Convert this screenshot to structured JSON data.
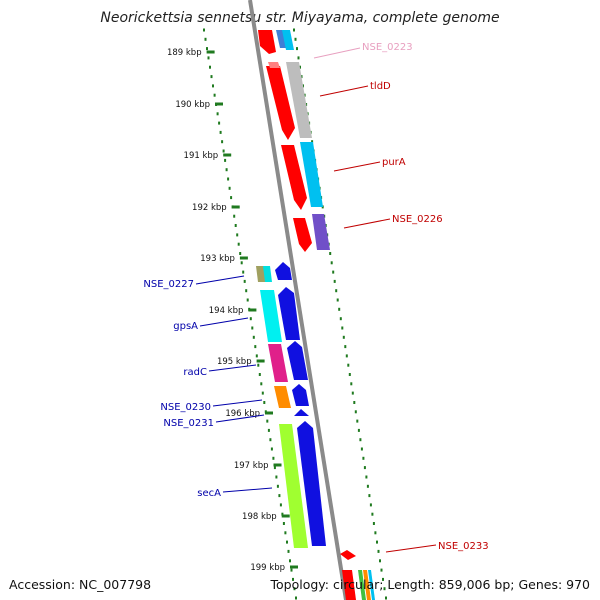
{
  "title": "Neorickettsia sennetsu str. Miyayama, complete genome",
  "accession": "Accession: NC_007798",
  "topology": "Topology: circular; Length: 859,006 bp; Genes: 970",
  "ticks": [
    "189 kbp",
    "190 kbp",
    "191 kbp",
    "192 kbp",
    "193 kbp",
    "194 kbp",
    "195 kbp",
    "196 kbp",
    "197 kbp",
    "198 kbp",
    "199 kbp"
  ],
  "labels_right": [
    "NSE_0223",
    "tldD",
    "purA",
    "NSE_0226",
    "NSE_0233"
  ],
  "labels_left": [
    "NSE_0227",
    "gpsA",
    "radC",
    "NSE_0230",
    "NSE_0231",
    "secA"
  ],
  "colors": {
    "forward_label": "#c00000",
    "forward_label_faded": "#e8a0c0",
    "reverse_label": "#0000aa",
    "backbone": "#8a8a8a",
    "tick": "#1f7a1f"
  }
}
